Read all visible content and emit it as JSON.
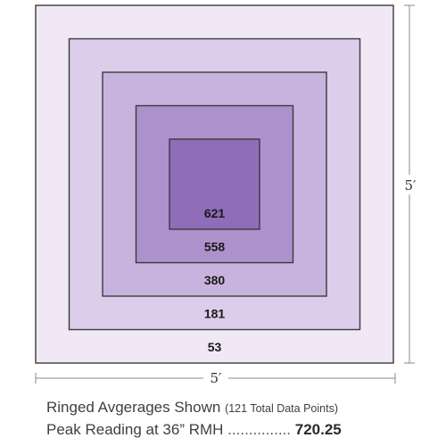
{
  "rings": [
    {
      "value": "53",
      "color": "#f0e9f5"
    },
    {
      "value": "181",
      "color": "#dccdea"
    },
    {
      "value": "380",
      "color": "#c8b3de"
    },
    {
      "value": "558",
      "color": "#ad91cd"
    },
    {
      "value": "621",
      "color": "#8f6db8"
    }
  ],
  "dimensions": {
    "width_label": "5′",
    "height_label": "5′"
  },
  "footer": {
    "line1_main": "Ringed Avgerages Shown",
    "line1_note": "(121 Total Data Points)",
    "line2_label": "Peak Reading at 36” RMH",
    "line2_dots": "...............",
    "line2_value": "720.25"
  }
}
